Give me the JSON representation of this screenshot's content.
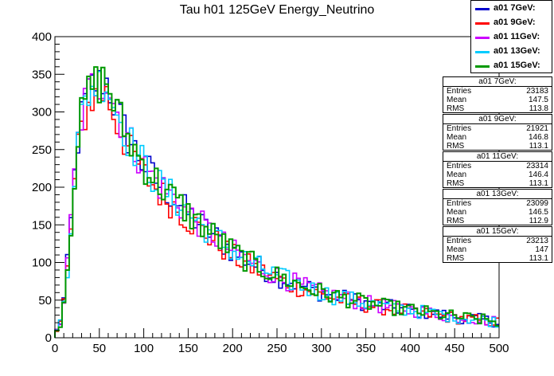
{
  "chart_data": {
    "type": "line",
    "title": "Tau h01 125GeV Energy_Neutrino",
    "xlabel": "",
    "ylabel": "",
    "xlim": [
      0,
      500
    ],
    "ylim": [
      0,
      400
    ],
    "xticks": [
      "0",
      "50",
      "100",
      "150",
      "200",
      "250",
      "300",
      "350",
      "400",
      "450",
      "500"
    ],
    "yticks": [
      "0",
      "50",
      "100",
      "150",
      "200",
      "250",
      "300",
      "350",
      "400"
    ],
    "bin_width": 4,
    "series": [
      {
        "name": "a01 7GeV:",
        "color": "#0000cc"
      },
      {
        "name": "a01 9GeV:",
        "color": "#ff0000"
      },
      {
        "name": "a01 11GeV:",
        "color": "#cc00ff"
      },
      {
        "name": "a01 13GeV:",
        "color": "#00ccff"
      },
      {
        "name": "a01 15GeV:",
        "color": "#009900"
      }
    ],
    "envelope": {
      "x": [
        0,
        4,
        8,
        12,
        16,
        20,
        24,
        28,
        32,
        36,
        40,
        44,
        48,
        52,
        56,
        60,
        64,
        68,
        72,
        76,
        80,
        90,
        100,
        110,
        120,
        130,
        140,
        150,
        160,
        170,
        180,
        200,
        220,
        250,
        280,
        300,
        320,
        350,
        380,
        400,
        420,
        450,
        480,
        500
      ],
      "y": [
        5,
        12,
        30,
        70,
        120,
        185,
        245,
        280,
        305,
        320,
        330,
        340,
        335,
        340,
        345,
        335,
        320,
        305,
        295,
        285,
        270,
        250,
        230,
        215,
        200,
        190,
        178,
        165,
        155,
        145,
        135,
        115,
        100,
        82,
        68,
        60,
        54,
        46,
        40,
        37,
        33,
        28,
        24,
        21
      ]
    },
    "stats": [
      {
        "title": "a01 7GeV:",
        "entries": "23183",
        "mean": "147.5",
        "rms": "113.8"
      },
      {
        "title": "a01 9GeV:",
        "entries": "21921",
        "mean": "146.8",
        "rms": "113.1"
      },
      {
        "title": "a01 11GeV:",
        "entries": "23314",
        "mean": "146.4",
        "rms": "113.1"
      },
      {
        "title": "a01 13GeV:",
        "entries": "23099",
        "mean": "146.5",
        "rms": "112.9"
      },
      {
        "title": "a01 15GeV:",
        "entries": "23213",
        "mean": "147",
        "rms": "113.1"
      }
    ],
    "stats_labels": {
      "entries": "Entries",
      "mean": "Mean",
      "rms": "RMS"
    },
    "legend_position": "top-right",
    "grid": false
  }
}
